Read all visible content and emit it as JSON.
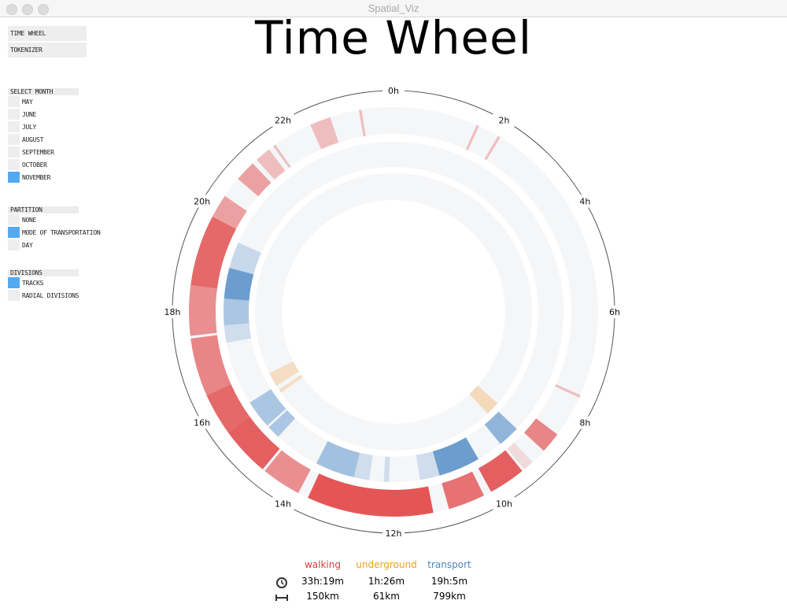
{
  "window": {
    "title": "Spatial_Viz"
  },
  "nav": {
    "buttons": [
      {
        "label": "TIME WHEEL"
      },
      {
        "label": "TOKENIZER"
      }
    ]
  },
  "page": {
    "title": "Time Wheel"
  },
  "controls": {
    "select_month": {
      "heading": "SELECT MONTH",
      "options": [
        {
          "label": "MAY",
          "selected": false
        },
        {
          "label": "JUNE",
          "selected": false
        },
        {
          "label": "JULY",
          "selected": false
        },
        {
          "label": "AUGUST",
          "selected": false
        },
        {
          "label": "SEPTEMBER",
          "selected": false
        },
        {
          "label": "OCTOBER",
          "selected": false
        },
        {
          "label": "NOVEMBER",
          "selected": true
        }
      ]
    },
    "partition": {
      "heading": "PARTITION",
      "options": [
        {
          "label": "NONE",
          "selected": false
        },
        {
          "label": "MODE OF TRANSPORTATION",
          "selected": true
        },
        {
          "label": "DAY",
          "selected": false
        }
      ]
    },
    "divisions": {
      "heading": "DIVISIONS",
      "options": [
        {
          "label": "TRACKS",
          "selected": true
        },
        {
          "label": "RADIAL DIVISIONS",
          "selected": false
        }
      ]
    }
  },
  "colors": {
    "walking": "#e03a3a",
    "underground": "#f0a030",
    "transport": "#3f7fc0",
    "selected": "#54a9f0"
  },
  "legend": {
    "icons": {
      "time": "clock-icon",
      "distance": "distance-icon"
    },
    "modes": [
      {
        "name": "walking",
        "time": "33h:19m",
        "distance": "150km",
        "color": "#e03a3a"
      },
      {
        "name": "underground",
        "time": "1h:26m",
        "distance": "61km",
        "color": "#e8a020"
      },
      {
        "name": "transport",
        "time": "19h:5m",
        "distance": "799km",
        "color": "#4a86c0"
      }
    ]
  },
  "chart_data": {
    "type": "radial-timeline",
    "title": "Time Wheel",
    "hour_labels": [
      "0h",
      "2h",
      "4h",
      "6h",
      "8h",
      "10h",
      "12h",
      "14h",
      "16h",
      "18h",
      "20h",
      "22h"
    ],
    "range_hours": [
      0,
      24
    ],
    "direction": "clockwise from top",
    "tracks": [
      {
        "name": "walking",
        "color": "#e03a3a",
        "r_inner": 226,
        "r_outer": 260,
        "segments": [
          {
            "start": 22.4,
            "end": 22.8,
            "intensity": 0.3
          },
          {
            "start": 23.35,
            "end": 23.4,
            "intensity": 0.3
          },
          {
            "start": 1.6,
            "end": 1.65,
            "intensity": 0.3
          },
          {
            "start": 2.05,
            "end": 2.1,
            "intensity": 0.3
          },
          {
            "start": 21.6,
            "end": 21.65,
            "intensity": 0.3
          },
          {
            "start": 21.2,
            "end": 21.5,
            "intensity": 0.3
          },
          {
            "start": 20.7,
            "end": 21.1,
            "intensity": 0.45
          },
          {
            "start": 19.85,
            "end": 20.3,
            "intensity": 0.45
          },
          {
            "start": 18.5,
            "end": 19.85,
            "intensity": 0.75
          },
          {
            "start": 17.55,
            "end": 18.5,
            "intensity": 0.55
          },
          {
            "start": 16.4,
            "end": 17.5,
            "intensity": 0.6
          },
          {
            "start": 15.6,
            "end": 16.4,
            "intensity": 0.75
          },
          {
            "start": 14.65,
            "end": 15.6,
            "intensity": 0.8
          },
          {
            "start": 13.85,
            "end": 14.6,
            "intensity": 0.55
          },
          {
            "start": 11.25,
            "end": 13.65,
            "intensity": 0.85
          },
          {
            "start": 10.25,
            "end": 10.95,
            "intensity": 0.7
          },
          {
            "start": 9.4,
            "end": 10.1,
            "intensity": 0.8
          },
          {
            "start": 9.15,
            "end": 9.35,
            "intensity": 0.15
          },
          {
            "start": 8.45,
            "end": 8.85,
            "intensity": 0.6
          },
          {
            "start": 7.6,
            "end": 7.65,
            "intensity": 0.3
          }
        ]
      },
      {
        "name": "transport",
        "color": "#3f7fc0",
        "r_inner": 184,
        "r_outer": 216,
        "segments": [
          {
            "start": 17.3,
            "end": 17.7,
            "intensity": 0.2
          },
          {
            "start": 17.7,
            "end": 18.3,
            "intensity": 0.4
          },
          {
            "start": 18.3,
            "end": 19.0,
            "intensity": 0.75
          },
          {
            "start": 19.0,
            "end": 19.6,
            "intensity": 0.25
          },
          {
            "start": 15.2,
            "end": 15.85,
            "intensity": 0.4
          },
          {
            "start": 14.85,
            "end": 15.15,
            "intensity": 0.4
          },
          {
            "start": 12.9,
            "end": 13.8,
            "intensity": 0.45
          },
          {
            "start": 12.55,
            "end": 12.9,
            "intensity": 0.2
          },
          {
            "start": 12.1,
            "end": 12.22,
            "intensity": 0.2
          },
          {
            "start": 10.95,
            "end": 11.4,
            "intensity": 0.2
          },
          {
            "start": 10.0,
            "end": 10.95,
            "intensity": 0.75
          },
          {
            "start": 8.9,
            "end": 9.4,
            "intensity": 0.55
          }
        ]
      },
      {
        "name": "underground",
        "color": "#f5b060",
        "r_inner": 142,
        "r_outer": 176,
        "segments": [
          {
            "start": 15.85,
            "end": 16.25,
            "intensity": 0.35
          },
          {
            "start": 15.62,
            "end": 15.72,
            "intensity": 0.35
          },
          {
            "start": 8.75,
            "end": 9.15,
            "intensity": 0.4
          }
        ]
      }
    ]
  }
}
